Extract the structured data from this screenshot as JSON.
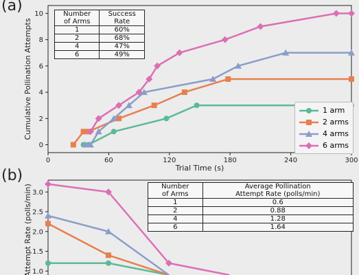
{
  "panels": {
    "a_label": "(a)",
    "b_label": "(b)"
  },
  "colors": {
    "1 arm": "#5aba97",
    "2 arms": "#e6804f",
    "4 arms": "#8b9dc9",
    "6 arms": "#db6fb4"
  },
  "chart_data": [
    {
      "type": "line",
      "xlabel": "Trial Time (s)",
      "ylabel": "Cumulative Pollination Attempts",
      "xlim": [
        0,
        300
      ],
      "ylim": [
        -0.6,
        10.6
      ],
      "xticks": [
        0,
        60,
        120,
        180,
        240,
        300
      ],
      "yticks": [
        0,
        2,
        4,
        6,
        8,
        10
      ],
      "legend_position": "bottom-right",
      "series": [
        {
          "name": "1 arm",
          "marker": "circle",
          "points": [
            [
              35,
              0
            ],
            [
              40,
              0
            ],
            [
              65,
              1
            ],
            [
              117,
              2
            ],
            [
              147,
              3
            ],
            [
              300,
              3
            ]
          ]
        },
        {
          "name": "2 arms",
          "marker": "square",
          "points": [
            [
              25,
              0
            ],
            [
              35,
              1
            ],
            [
              40,
              1
            ],
            [
              70,
              2
            ],
            [
              105,
              3
            ],
            [
              135,
              4
            ],
            [
              178,
              5
            ],
            [
              300,
              5
            ]
          ]
        },
        {
          "name": "4 arms",
          "marker": "triangle",
          "points": [
            [
              37,
              0
            ],
            [
              42,
              0
            ],
            [
              50,
              1
            ],
            [
              65,
              2
            ],
            [
              80,
              3
            ],
            [
              95,
              4
            ],
            [
              163,
              5
            ],
            [
              188,
              6
            ],
            [
              235,
              7
            ],
            [
              300,
              7
            ]
          ]
        },
        {
          "name": "6 arms",
          "marker": "diamond",
          "points": [
            [
              42,
              1
            ],
            [
              50,
              2
            ],
            [
              70,
              3
            ],
            [
              90,
              4
            ],
            [
              100,
              5
            ],
            [
              108,
              6
            ],
            [
              130,
              7
            ],
            [
              175,
              8
            ],
            [
              210,
              9
            ],
            [
              285,
              10
            ],
            [
              300,
              10
            ]
          ]
        }
      ],
      "table": {
        "headers": [
          "Number\nof Arms",
          "Success\nRate"
        ],
        "rows": [
          [
            "1",
            "60%"
          ],
          [
            "2",
            "68%"
          ],
          [
            "4",
            "47%"
          ],
          [
            "6",
            "49%"
          ]
        ]
      }
    },
    {
      "type": "line",
      "xlabel": "",
      "ylabel": "Attempt Rate (polls/min)",
      "ylim": [
        0.9,
        3.3
      ],
      "yticks": [
        1.0,
        1.5,
        2.0,
        2.5,
        3.0
      ],
      "visible_tick_labels": [
        "1.0",
        "1.5",
        "2.0",
        "2.5",
        "3.0"
      ],
      "series": [
        {
          "name": "1 arm",
          "marker": "circle",
          "points": [
            [
              0,
              1.2
            ],
            [
              1,
              1.2
            ],
            [
              2,
              0.9
            ]
          ]
        },
        {
          "name": "2 arms",
          "marker": "square",
          "points": [
            [
              0,
              2.2
            ],
            [
              1,
              1.4
            ],
            [
              2,
              0.9
            ]
          ]
        },
        {
          "name": "4 arms",
          "marker": "triangle",
          "points": [
            [
              0,
              2.4
            ],
            [
              1,
              2.0
            ],
            [
              2,
              0.9
            ]
          ]
        },
        {
          "name": "6 arms",
          "marker": "diamond",
          "points": [
            [
              0,
              3.2
            ],
            [
              1,
              3.0
            ],
            [
              2,
              1.2
            ],
            [
              3,
              0.9
            ]
          ]
        }
      ],
      "table": {
        "headers": [
          "Number\nof Arms",
          "Average Pollination\nAttempt Rate (polls/min)"
        ],
        "rows": [
          [
            "1",
            "0.6"
          ],
          [
            "2",
            "0.88"
          ],
          [
            "4",
            "1.28"
          ],
          [
            "6",
            "1.64"
          ]
        ]
      }
    }
  ]
}
